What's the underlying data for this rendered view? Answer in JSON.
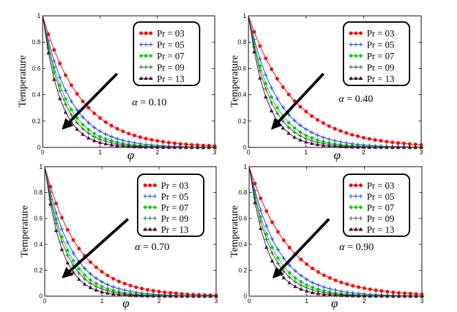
{
  "figure": {
    "description_domain": "Chart"
  },
  "shared": {
    "ylabel": "Temperature",
    "xlabel": "φ",
    "xlim": [
      0,
      3
    ],
    "ylim": [
      0,
      1
    ],
    "xticks": [
      0,
      1,
      2,
      3
    ],
    "yticks": [
      0,
      0.2,
      0.4,
      0.6,
      0.8,
      1
    ],
    "ytick_labels": [
      "0",
      "0.2",
      "0.4",
      "0.6",
      "0.8",
      "1"
    ],
    "xtick_labels": [
      "0",
      "1",
      "2",
      "3"
    ],
    "legend_labels": [
      "Pr = 03",
      "Pr = 05",
      "Pr = 07",
      "Pr = 09",
      "Pr = 13"
    ],
    "marker_styles": [
      "circle",
      "plus",
      "diamond",
      "plus",
      "triangle"
    ],
    "series_colors": [
      "#ff0000",
      "#1e3cff",
      "#00d000",
      "#2e5d4a",
      "#4a0f3a"
    ],
    "arrow_direction": "increasing Pr"
  },
  "chart_data": [
    {
      "type": "line",
      "panel": "top-left",
      "param_symbol": "α",
      "param_text": " = 0.10",
      "x": [
        0,
        0.1,
        0.2,
        0.3,
        0.4,
        0.5,
        0.6,
        0.7,
        0.8,
        0.9,
        1.0,
        1.1,
        1.2,
        1.3,
        1.4,
        1.5,
        1.6,
        1.7,
        1.8,
        1.9,
        2.0,
        2.1,
        2.2,
        2.3,
        2.4,
        2.5,
        2.6,
        2.7,
        2.8,
        2.9,
        3.0
      ],
      "series": [
        {
          "name": "Pr = 03",
          "values": [
            1.0,
            0.86,
            0.741,
            0.638,
            0.549,
            0.472,
            0.407,
            0.35,
            0.301,
            0.259,
            0.223,
            0.192,
            0.165,
            0.142,
            0.122,
            0.105,
            0.091,
            0.078,
            0.067,
            0.058,
            0.05,
            0.043,
            0.037,
            0.032,
            0.027,
            0.024,
            0.02,
            0.018,
            0.015,
            0.013,
            0.011
          ]
        },
        {
          "name": "Pr = 05",
          "values": [
            1.0,
            0.811,
            0.657,
            0.533,
            0.432,
            0.35,
            0.284,
            0.23,
            0.187,
            0.151,
            0.123,
            0.1,
            0.081,
            0.065,
            0.053,
            0.043,
            0.035,
            0.028,
            0.023,
            0.019,
            0.015,
            0.012,
            0.01,
            0.008,
            0.007,
            0.005,
            0.004,
            0.004,
            0.003,
            0.002,
            0.002
          ]
        },
        {
          "name": "Pr = 07",
          "values": [
            1.0,
            0.78,
            0.607,
            0.473,
            0.368,
            0.287,
            0.223,
            0.174,
            0.135,
            0.105,
            0.082,
            0.064,
            0.05,
            0.039,
            0.03,
            0.023,
            0.018,
            0.014,
            0.011,
            0.009,
            0.007,
            0.005,
            0.004,
            0.003,
            0.003,
            0.002,
            0.002,
            0.001,
            0.001,
            0.001,
            0.001
          ]
        },
        {
          "name": "Pr = 09",
          "values": [
            1.0,
            0.756,
            0.571,
            0.432,
            0.327,
            0.247,
            0.187,
            0.141,
            0.107,
            0.081,
            0.061,
            0.046,
            0.035,
            0.026,
            0.02,
            0.015,
            0.011,
            0.009,
            0.006,
            0.005,
            0.004,
            0.003,
            0.002,
            0.002,
            0.001,
            0.001,
            0.001,
            0.001,
            0.0,
            0.0,
            0.0
          ]
        },
        {
          "name": "Pr = 13",
          "values": [
            1.0,
            0.719,
            0.517,
            0.371,
            0.267,
            0.192,
            0.138,
            0.099,
            0.071,
            0.051,
            0.037,
            0.027,
            0.019,
            0.014,
            0.01,
            0.007,
            0.005,
            0.004,
            0.003,
            0.002,
            0.001,
            0.001,
            0.001,
            0.001,
            0.0,
            0.0,
            0.0,
            0.0,
            0.0,
            0.0,
            0.0
          ]
        }
      ]
    },
    {
      "type": "line",
      "panel": "top-right",
      "param_symbol": "α",
      "param_text": " = 0.40",
      "x": [
        0,
        0.1,
        0.2,
        0.3,
        0.4,
        0.5,
        0.6,
        0.7,
        0.8,
        0.9,
        1.0,
        1.1,
        1.2,
        1.3,
        1.4,
        1.5,
        1.6,
        1.7,
        1.8,
        1.9,
        2.0,
        2.1,
        2.2,
        2.3,
        2.4,
        2.5,
        2.6,
        2.7,
        2.8,
        2.9,
        3.0
      ],
      "series": [
        {
          "name": "Pr = 03",
          "values": [
            1.0,
            0.878,
            0.771,
            0.677,
            0.595,
            0.522,
            0.458,
            0.402,
            0.353,
            0.31,
            0.273,
            0.239,
            0.21,
            0.185,
            0.162,
            0.142,
            0.125,
            0.11,
            0.096,
            0.085,
            0.074,
            0.065,
            0.057,
            0.05,
            0.044,
            0.039,
            0.034,
            0.03,
            0.026,
            0.023,
            0.02
          ]
        },
        {
          "name": "Pr = 05",
          "values": [
            1.0,
            0.82,
            0.672,
            0.551,
            0.452,
            0.371,
            0.304,
            0.249,
            0.204,
            0.168,
            0.138,
            0.113,
            0.093,
            0.076,
            0.062,
            0.051,
            0.042,
            0.034,
            0.028,
            0.023,
            0.019,
            0.015,
            0.013,
            0.01,
            0.008,
            0.007,
            0.006,
            0.005,
            0.004,
            0.003,
            0.003
          ]
        },
        {
          "name": "Pr = 07",
          "values": [
            1.0,
            0.787,
            0.619,
            0.487,
            0.383,
            0.301,
            0.237,
            0.187,
            0.147,
            0.116,
            0.091,
            0.072,
            0.056,
            0.044,
            0.035,
            0.027,
            0.022,
            0.017,
            0.013,
            0.011,
            0.008,
            0.007,
            0.005,
            0.004,
            0.003,
            0.003,
            0.002,
            0.002,
            0.001,
            0.001,
            0.001
          ]
        },
        {
          "name": "Pr = 09",
          "values": [
            1.0,
            0.763,
            0.583,
            0.445,
            0.339,
            0.259,
            0.198,
            0.151,
            0.115,
            0.088,
            0.067,
            0.051,
            0.039,
            0.03,
            0.023,
            0.017,
            0.013,
            0.01,
            0.008,
            0.006,
            0.005,
            0.003,
            0.003,
            0.002,
            0.002,
            0.001,
            0.001,
            0.001,
            0.001,
            0.0,
            0.0
          ]
        },
        {
          "name": "Pr = 13",
          "values": [
            1.0,
            0.726,
            0.527,
            0.383,
            0.278,
            0.202,
            0.147,
            0.107,
            0.077,
            0.056,
            0.041,
            0.03,
            0.022,
            0.016,
            0.011,
            0.008,
            0.006,
            0.004,
            0.003,
            0.002,
            0.002,
            0.001,
            0.001,
            0.001,
            0.0,
            0.0,
            0.0,
            0.0,
            0.0,
            0.0,
            0.0
          ]
        }
      ]
    },
    {
      "type": "line",
      "panel": "bottom-left",
      "param_symbol": "α",
      "param_text": " = 0.70",
      "x": [
        0,
        0.1,
        0.2,
        0.3,
        0.4,
        0.5,
        0.6,
        0.7,
        0.8,
        0.9,
        1.0,
        1.1,
        1.2,
        1.3,
        1.4,
        1.5,
        1.6,
        1.7,
        1.8,
        1.9,
        2.0,
        2.1,
        2.2,
        2.3,
        2.4,
        2.5,
        2.6,
        2.7,
        2.8,
        2.9,
        3.0
      ],
      "series": [
        {
          "name": "Pr = 03",
          "values": [
            1.0,
            0.846,
            0.716,
            0.606,
            0.513,
            0.434,
            0.368,
            0.311,
            0.263,
            0.223,
            0.189,
            0.16,
            0.135,
            0.114,
            0.097,
            0.082,
            0.069,
            0.059,
            0.05,
            0.042,
            0.036,
            0.03,
            0.026,
            0.022,
            0.018,
            0.015,
            0.013,
            0.011,
            0.009,
            0.008,
            0.007
          ]
        },
        {
          "name": "Pr = 05",
          "values": [
            1.0,
            0.802,
            0.644,
            0.517,
            0.414,
            0.333,
            0.267,
            0.214,
            0.172,
            0.138,
            0.111,
            0.089,
            0.071,
            0.057,
            0.046,
            0.037,
            0.03,
            0.024,
            0.019,
            0.015,
            0.012,
            0.01,
            0.008,
            0.006,
            0.005,
            0.004,
            0.003,
            0.003,
            0.002,
            0.002,
            0.001
          ]
        },
        {
          "name": "Pr = 07",
          "values": [
            1.0,
            0.771,
            0.595,
            0.459,
            0.354,
            0.273,
            0.211,
            0.162,
            0.125,
            0.097,
            0.074,
            0.057,
            0.044,
            0.034,
            0.026,
            0.02,
            0.016,
            0.012,
            0.009,
            0.007,
            0.006,
            0.004,
            0.003,
            0.003,
            0.002,
            0.002,
            0.001,
            0.001,
            0.001,
            0.001,
            0.0
          ]
        },
        {
          "name": "Pr = 09",
          "values": [
            1.0,
            0.749,
            0.561,
            0.42,
            0.315,
            0.236,
            0.177,
            0.132,
            0.099,
            0.074,
            0.056,
            0.042,
            0.031,
            0.023,
            0.017,
            0.013,
            0.01,
            0.007,
            0.006,
            0.004,
            0.003,
            0.002,
            0.002,
            0.001,
            0.001,
            0.001,
            0.001,
            0.0,
            0.0,
            0.0,
            0.0
          ]
        },
        {
          "name": "Pr = 13",
          "values": [
            1.0,
            0.712,
            0.507,
            0.361,
            0.257,
            0.183,
            0.13,
            0.093,
            0.066,
            0.047,
            0.033,
            0.024,
            0.017,
            0.012,
            0.009,
            0.006,
            0.004,
            0.003,
            0.002,
            0.002,
            0.001,
            0.001,
            0.001,
            0.0,
            0.0,
            0.0,
            0.0,
            0.0,
            0.0,
            0.0,
            0.0
          ]
        }
      ]
    },
    {
      "type": "line",
      "panel": "bottom-right",
      "param_symbol": "α",
      "param_text": " = 0.90",
      "x": [
        0,
        0.1,
        0.2,
        0.3,
        0.4,
        0.5,
        0.6,
        0.7,
        0.8,
        0.9,
        1.0,
        1.1,
        1.2,
        1.3,
        1.4,
        1.5,
        1.6,
        1.7,
        1.8,
        1.9,
        2.0,
        2.1,
        2.2,
        2.3,
        2.4,
        2.5,
        2.6,
        2.7,
        2.8,
        2.9,
        3.0
      ],
      "series": [
        {
          "name": "Pr = 03",
          "values": [
            1.0,
            0.869,
            0.756,
            0.657,
            0.571,
            0.497,
            0.432,
            0.375,
            0.326,
            0.284,
            0.247,
            0.214,
            0.186,
            0.162,
            0.141,
            0.122,
            0.106,
            0.093,
            0.08,
            0.07,
            0.061,
            0.053,
            0.046,
            0.04,
            0.035,
            0.03,
            0.026,
            0.023,
            0.02,
            0.017,
            0.015
          ]
        },
        {
          "name": "Pr = 05",
          "values": [
            1.0,
            0.815,
            0.664,
            0.542,
            0.441,
            0.36,
            0.293,
            0.239,
            0.195,
            0.159,
            0.129,
            0.105,
            0.086,
            0.07,
            0.057,
            0.047,
            0.038,
            0.031,
            0.025,
            0.021,
            0.017,
            0.014,
            0.011,
            0.009,
            0.007,
            0.006,
            0.005,
            0.004,
            0.003,
            0.003,
            0.002
          ]
        },
        {
          "name": "Pr = 07",
          "values": [
            1.0,
            0.783,
            0.613,
            0.48,
            0.376,
            0.294,
            0.23,
            0.18,
            0.141,
            0.111,
            0.086,
            0.068,
            0.053,
            0.042,
            0.033,
            0.025,
            0.02,
            0.016,
            0.012,
            0.01,
            0.008,
            0.006,
            0.005,
            0.004,
            0.003,
            0.002,
            0.002,
            0.001,
            0.001,
            0.001,
            0.001
          ]
        },
        {
          "name": "Pr = 09",
          "values": [
            1.0,
            0.76,
            0.577,
            0.439,
            0.333,
            0.253,
            0.192,
            0.146,
            0.111,
            0.084,
            0.064,
            0.049,
            0.037,
            0.028,
            0.021,
            0.016,
            0.012,
            0.009,
            0.007,
            0.005,
            0.004,
            0.003,
            0.002,
            0.002,
            0.001,
            0.001,
            0.001,
            0.001,
            0.0,
            0.0,
            0.0
          ]
        },
        {
          "name": "Pr = 13",
          "values": [
            1.0,
            0.722,
            0.522,
            0.377,
            0.272,
            0.197,
            0.142,
            0.103,
            0.074,
            0.054,
            0.039,
            0.028,
            0.02,
            0.015,
            0.011,
            0.008,
            0.006,
            0.004,
            0.003,
            0.002,
            0.001,
            0.001,
            0.001,
            0.001,
            0.0,
            0.0,
            0.0,
            0.0,
            0.0,
            0.0,
            0.0
          ]
        }
      ]
    }
  ]
}
